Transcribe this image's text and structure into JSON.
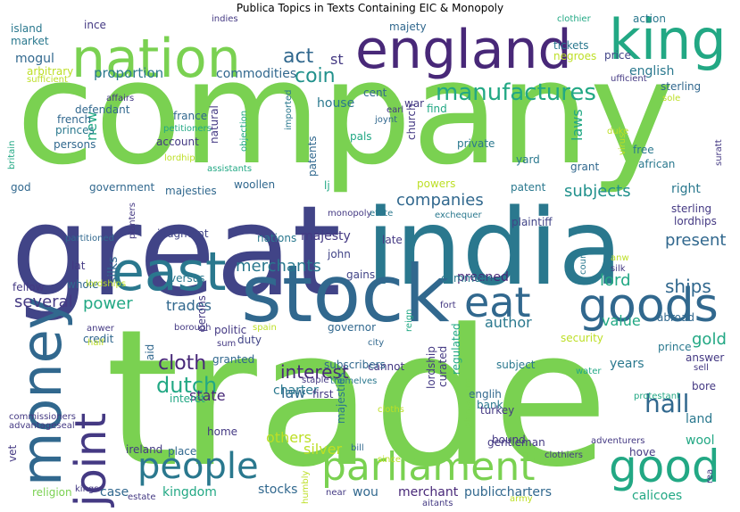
{
  "title": "Publica Topics in Texts Containing EIC & Monopoly",
  "words": [
    {
      "text": "trade",
      "color": "#7ad151"
    },
    {
      "text": "company",
      "color": "#7ad151"
    },
    {
      "text": "great",
      "color": "#414487"
    },
    {
      "text": "india",
      "color": "#2a788e"
    },
    {
      "text": "stock",
      "color": "#31688e"
    },
    {
      "text": "england",
      "color": "#482878"
    },
    {
      "text": "nation",
      "color": "#7ad151"
    },
    {
      "text": "king",
      "color": "#22a884"
    },
    {
      "text": "east",
      "color": "#2a788e"
    },
    {
      "text": "money",
      "color": "#31688e"
    },
    {
      "text": "parliament",
      "color": "#7ad151"
    },
    {
      "text": "people",
      "color": "#2a788e"
    },
    {
      "text": "good",
      "color": "#22a884"
    },
    {
      "text": "joint",
      "color": "#443983"
    },
    {
      "text": "goods",
      "color": "#31688e"
    },
    {
      "text": "eat",
      "color": "#31688e"
    },
    {
      "text": "manufactures",
      "color": "#22a884"
    },
    {
      "text": "coin",
      "color": "#21918c"
    },
    {
      "text": "act",
      "color": "#31688e"
    },
    {
      "text": "st",
      "color": "#443983"
    },
    {
      "text": "subjects",
      "color": "#21918c"
    },
    {
      "text": "companies",
      "color": "#31688e"
    },
    {
      "text": "hall",
      "color": "#31688e"
    },
    {
      "text": "dutch",
      "color": "#22a884"
    },
    {
      "text": "interest",
      "color": "#482878"
    },
    {
      "text": "ships",
      "color": "#31688e"
    },
    {
      "text": "merchants",
      "color": "#2a788e"
    },
    {
      "text": "present",
      "color": "#31688e"
    },
    {
      "text": "lord",
      "color": "#22a884"
    },
    {
      "text": "cloth",
      "color": "#482878"
    },
    {
      "text": "power",
      "color": "#22a884"
    },
    {
      "text": "several",
      "color": "#443983"
    },
    {
      "text": "trades",
      "color": "#31688e"
    },
    {
      "text": "value",
      "color": "#22a884"
    },
    {
      "text": "gold",
      "color": "#22a884"
    },
    {
      "text": "author",
      "color": "#2a788e"
    },
    {
      "text": "preened",
      "color": "#482878"
    },
    {
      "text": "laws",
      "color": "#22a884"
    },
    {
      "text": "new",
      "color": "#22a884"
    },
    {
      "text": "proportion",
      "color": "#2a788e"
    },
    {
      "text": "commodities",
      "color": "#31688e"
    },
    {
      "text": "house",
      "color": "#2a788e"
    },
    {
      "text": "mogul",
      "color": "#31688e"
    },
    {
      "text": "english",
      "color": "#2a788e"
    },
    {
      "text": "price",
      "color": "#414487"
    },
    {
      "text": "cent",
      "color": "#31688e"
    },
    {
      "text": "war",
      "color": "#443983"
    },
    {
      "text": "silks",
      "color": "#31688e"
    },
    {
      "text": "majesty",
      "color": "#443983"
    },
    {
      "text": "state",
      "color": "#482878"
    },
    {
      "text": "law",
      "color": "#31688e"
    },
    {
      "text": "charter",
      "color": "#2a788e"
    },
    {
      "text": "others",
      "color": "#bddf26"
    },
    {
      "text": "silver",
      "color": "#bddf26"
    },
    {
      "text": "stocks",
      "color": "#31688e"
    },
    {
      "text": "kingdom",
      "color": "#22a884"
    },
    {
      "text": "case",
      "color": "#31688e"
    },
    {
      "text": "wou",
      "color": "#31688e"
    },
    {
      "text": "merchant",
      "color": "#482878"
    },
    {
      "text": "public",
      "color": "#31688e"
    },
    {
      "text": "charters",
      "color": "#31688e"
    },
    {
      "text": "calicoes",
      "color": "#22a884"
    },
    {
      "text": "wool",
      "color": "#22a884"
    },
    {
      "text": "land",
      "color": "#2a788e"
    },
    {
      "text": "bank",
      "color": "#2a788e"
    },
    {
      "text": "years",
      "color": "#2a788e"
    },
    {
      "text": "turkey",
      "color": "#443983"
    },
    {
      "text": "englih",
      "color": "#31688e"
    },
    {
      "text": "patent",
      "color": "#2a788e"
    },
    {
      "text": "right",
      "color": "#2a788e"
    },
    {
      "text": "sterling",
      "color": "#443983"
    },
    {
      "text": "plaintiff",
      "color": "#414487"
    },
    {
      "text": "lordhips",
      "color": "#443983"
    },
    {
      "text": "african",
      "color": "#2a788e"
    },
    {
      "text": "grant",
      "color": "#31688e"
    },
    {
      "text": "free",
      "color": "#2a788e"
    },
    {
      "text": "sterling",
      "color": "#31688e"
    },
    {
      "text": "action",
      "color": "#2a788e"
    },
    {
      "text": "defendant",
      "color": "#31688e"
    },
    {
      "text": "french",
      "color": "#31688e"
    },
    {
      "text": "princes",
      "color": "#2a788e"
    },
    {
      "text": "persons",
      "color": "#31688e"
    },
    {
      "text": "account",
      "color": "#443983"
    },
    {
      "text": "france",
      "color": "#31688e"
    },
    {
      "text": "pals",
      "color": "#22a884"
    },
    {
      "text": "church",
      "color": "#443983"
    },
    {
      "text": "private",
      "color": "#2a788e"
    },
    {
      "text": "yard",
      "color": "#2a788e"
    },
    {
      "text": "god",
      "color": "#31688e"
    },
    {
      "text": "government",
      "color": "#31688e"
    },
    {
      "text": "majesties",
      "color": "#31688e"
    },
    {
      "text": "woollen",
      "color": "#31688e"
    },
    {
      "text": "judgment",
      "color": "#414487"
    },
    {
      "text": "nations",
      "color": "#2a788e"
    },
    {
      "text": "late",
      "color": "#443983"
    },
    {
      "text": "john",
      "color": "#414487"
    },
    {
      "text": "lat",
      "color": "#443983"
    },
    {
      "text": "fellow",
      "color": "#443983"
    },
    {
      "text": "whole",
      "color": "#31688e"
    },
    {
      "text": "gains",
      "color": "#414487"
    },
    {
      "text": "commons",
      "color": "#2a788e"
    },
    {
      "text": "credit",
      "color": "#31688e"
    },
    {
      "text": "politic",
      "color": "#443983"
    },
    {
      "text": "duty",
      "color": "#414487"
    },
    {
      "text": "governor",
      "color": "#31688e"
    },
    {
      "text": "perons",
      "color": "#443983"
    },
    {
      "text": "aid",
      "color": "#31688e"
    },
    {
      "text": "interet",
      "color": "#22a884"
    },
    {
      "text": "granted",
      "color": "#31688e"
    },
    {
      "text": "home",
      "color": "#443983"
    },
    {
      "text": "place",
      "color": "#31688e"
    },
    {
      "text": "ireland",
      "color": "#443983"
    },
    {
      "text": "first",
      "color": "#443983"
    },
    {
      "text": "cannot",
      "color": "#443983"
    },
    {
      "text": "subject",
      "color": "#2a788e"
    },
    {
      "text": "bound",
      "color": "#443983"
    },
    {
      "text": "hove",
      "color": "#443983"
    },
    {
      "text": "gentleman",
      "color": "#443983"
    },
    {
      "text": "bore",
      "color": "#443983"
    },
    {
      "text": "prince",
      "color": "#2a788e"
    },
    {
      "text": "answer",
      "color": "#443983"
    },
    {
      "text": "abroad",
      "color": "#31688e"
    },
    {
      "text": "security",
      "color": "#bddf26"
    },
    {
      "text": "vet",
      "color": "#443983"
    },
    {
      "text": "religion",
      "color": "#7ad151"
    },
    {
      "text": "ince",
      "color": "#443983"
    },
    {
      "text": "island",
      "color": "#2a788e"
    },
    {
      "text": "market",
      "color": "#2a788e"
    },
    {
      "text": "majety",
      "color": "#31688e"
    },
    {
      "text": "tickets",
      "color": "#2a788e"
    },
    {
      "text": "negroes",
      "color": "#bddf26"
    },
    {
      "text": "arbitrary",
      "color": "#bddf26"
    },
    {
      "text": "clothier",
      "color": "#22a884"
    },
    {
      "text": "sufficient",
      "color": "#bddf26"
    },
    {
      "text": "ufficient",
      "color": "#443983"
    },
    {
      "text": "affairs",
      "color": "#443983"
    },
    {
      "text": "sole",
      "color": "#bddf26"
    },
    {
      "text": "natural",
      "color": "#443983"
    },
    {
      "text": "objection",
      "color": "#22a884"
    },
    {
      "text": "imported",
      "color": "#2a788e"
    },
    {
      "text": "earl",
      "color": "#443983"
    },
    {
      "text": "joynt",
      "color": "#31688e"
    },
    {
      "text": "find",
      "color": "#22a884"
    },
    {
      "text": "patents",
      "color": "#31688e"
    },
    {
      "text": "petitioners",
      "color": "#22a884"
    },
    {
      "text": "lordhip",
      "color": "#bddf26"
    },
    {
      "text": "virus",
      "color": "#bddf26"
    },
    {
      "text": "duke",
      "color": "#bddf26"
    },
    {
      "text": "suratt",
      "color": "#443983"
    },
    {
      "text": "britain",
      "color": "#22a884"
    },
    {
      "text": "assistants",
      "color": "#22a884"
    },
    {
      "text": "lj",
      "color": "#22a884"
    },
    {
      "text": "powers",
      "color": "#bddf26"
    },
    {
      "text": "monopoly",
      "color": "#443983"
    },
    {
      "text": "etate",
      "color": "#2a788e"
    },
    {
      "text": "exchequer",
      "color": "#2a788e"
    },
    {
      "text": "planters",
      "color": "#443983"
    },
    {
      "text": "partitioned",
      "color": "#31688e"
    },
    {
      "text": "anw",
      "color": "#bddf26"
    },
    {
      "text": "silk",
      "color": "#443983"
    },
    {
      "text": "court",
      "color": "#2a788e"
    },
    {
      "text": "versus",
      "color": "#2a788e"
    },
    {
      "text": "lordships",
      "color": "#bddf26"
    },
    {
      "text": "fort",
      "color": "#443983"
    },
    {
      "text": "reign",
      "color": "#22a884"
    },
    {
      "text": "anwer",
      "color": "#443983"
    },
    {
      "text": "borough",
      "color": "#443983"
    },
    {
      "text": "spain",
      "color": "#bddf26"
    },
    {
      "text": "half",
      "color": "#bddf26"
    },
    {
      "text": "sum",
      "color": "#443983"
    },
    {
      "text": "city",
      "color": "#31688e"
    },
    {
      "text": "subscribers",
      "color": "#31688e"
    },
    {
      "text": "staple",
      "color": "#443983"
    },
    {
      "text": "themelves",
      "color": "#2a788e"
    },
    {
      "text": "lordship",
      "color": "#443983"
    },
    {
      "text": "curated",
      "color": "#443983"
    },
    {
      "text": "regulated",
      "color": "#22a884"
    },
    {
      "text": "plantations",
      "color": "#7ad151"
    },
    {
      "text": "water",
      "color": "#22a884"
    },
    {
      "text": "protestant",
      "color": "#22a884"
    },
    {
      "text": "sell",
      "color": "#443983"
    },
    {
      "text": "rea",
      "color": "#443983"
    },
    {
      "text": "cloths",
      "color": "#bddf26"
    },
    {
      "text": "majesties",
      "color": "#2a788e"
    },
    {
      "text": "since",
      "color": "#bddf26"
    },
    {
      "text": "bill",
      "color": "#31688e"
    },
    {
      "text": "adventurers",
      "color": "#443983"
    },
    {
      "text": "clothiers",
      "color": "#443983"
    },
    {
      "text": "humbly",
      "color": "#bddf26"
    },
    {
      "text": "near",
      "color": "#443983"
    },
    {
      "text": "kings",
      "color": "#443983"
    },
    {
      "text": "estate",
      "color": "#443983"
    },
    {
      "text": "army",
      "color": "#bddf26"
    },
    {
      "text": "aitants",
      "color": "#443983"
    },
    {
      "text": "indies",
      "color": "#443983"
    },
    {
      "text": "commissioners",
      "color": "#443983"
    },
    {
      "text": "advantageseal",
      "color": "#443983"
    }
  ]
}
